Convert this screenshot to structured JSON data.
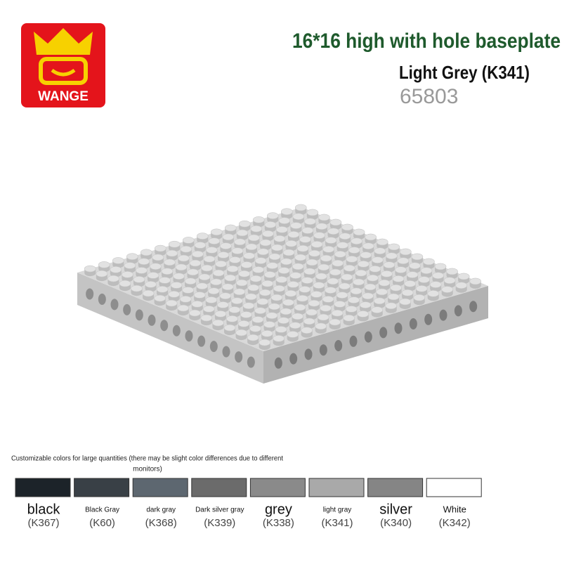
{
  "logo": {
    "text": "WANGE"
  },
  "header": {
    "title": "16*16 high with hole baseplate",
    "subtitle": "Light Grey (K341)",
    "code": "65803"
  },
  "note": {
    "line1": "Customizable colors for large quantities (there may be slight color differences due to different",
    "line2": "monitors)"
  },
  "swatches": [
    {
      "name": "black",
      "code": "(K367)",
      "color": "#1c2329"
    },
    {
      "name": "Black Gray",
      "code": "(K60)",
      "color": "#394046"
    },
    {
      "name": "dark gray",
      "code": "(K368)",
      "color": "#5d6770"
    },
    {
      "name": "Dark silver gray",
      "code": "(K339)",
      "color": "#6b6b6b"
    },
    {
      "name": "grey",
      "code": "(K338)",
      "color": "#8a8a8a"
    },
    {
      "name": "light gray",
      "code": "(K341)",
      "color": "#a9a9a9"
    },
    {
      "name": "silver",
      "code": "(K340)",
      "color": "#858585"
    },
    {
      "name": "White",
      "code": "(K342)",
      "color": "#ffffff"
    }
  ]
}
